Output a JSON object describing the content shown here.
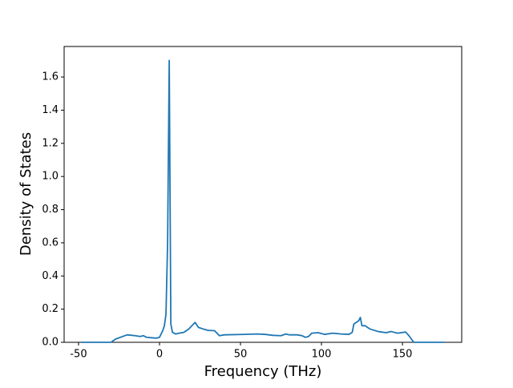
{
  "chart_data": {
    "type": "line",
    "xlabel": "Frequency (THz)",
    "ylabel": "Density of States",
    "x": [
      -48,
      -30,
      -27,
      -20,
      -15,
      -12,
      -10,
      -8,
      -2,
      0,
      2,
      3,
      4,
      5,
      6,
      7,
      8,
      10,
      12,
      15,
      18,
      22,
      24,
      27,
      30,
      34,
      37,
      40,
      50,
      60,
      65,
      70,
      75,
      78,
      80,
      85,
      88,
      90,
      92,
      94,
      98,
      102,
      107,
      112,
      117,
      119,
      120,
      123,
      124,
      125,
      127,
      130,
      135,
      140,
      143,
      147,
      152,
      154,
      157,
      176
    ],
    "values": [
      0,
      0,
      0.02,
      0.045,
      0.04,
      0.035,
      0.04,
      0.03,
      0.025,
      0.03,
      0.07,
      0.1,
      0.17,
      0.6,
      1.7,
      0.11,
      0.06,
      0.05,
      0.055,
      0.06,
      0.08,
      0.12,
      0.09,
      0.08,
      0.072,
      0.07,
      0.04,
      0.045,
      0.047,
      0.05,
      0.048,
      0.042,
      0.04,
      0.05,
      0.045,
      0.045,
      0.04,
      0.03,
      0.035,
      0.055,
      0.058,
      0.048,
      0.055,
      0.05,
      0.048,
      0.06,
      0.11,
      0.13,
      0.15,
      0.1,
      0.1,
      0.08,
      0.065,
      0.058,
      0.065,
      0.055,
      0.062,
      0.04,
      0,
      0
    ],
    "color": "#1f77b4",
    "xlim": [
      -58.9,
      186.6
    ],
    "xticks": [
      -50,
      0,
      50,
      100,
      150
    ],
    "ylim": [
      0,
      1.784
    ],
    "yticks": [
      {
        "value": 0,
        "label": "0.0"
      },
      {
        "value": 0.2,
        "label": "0.2"
      },
      {
        "value": 0.4,
        "label": "0.4"
      },
      {
        "value": 0.6,
        "label": "0.6"
      },
      {
        "value": 0.8,
        "label": "0.8"
      },
      {
        "value": 1.0,
        "label": "1.0"
      },
      {
        "value": 1.2,
        "label": "1.2"
      },
      {
        "value": 1.4,
        "label": "1.4"
      },
      {
        "value": 1.6,
        "label": "1.6"
      }
    ]
  }
}
